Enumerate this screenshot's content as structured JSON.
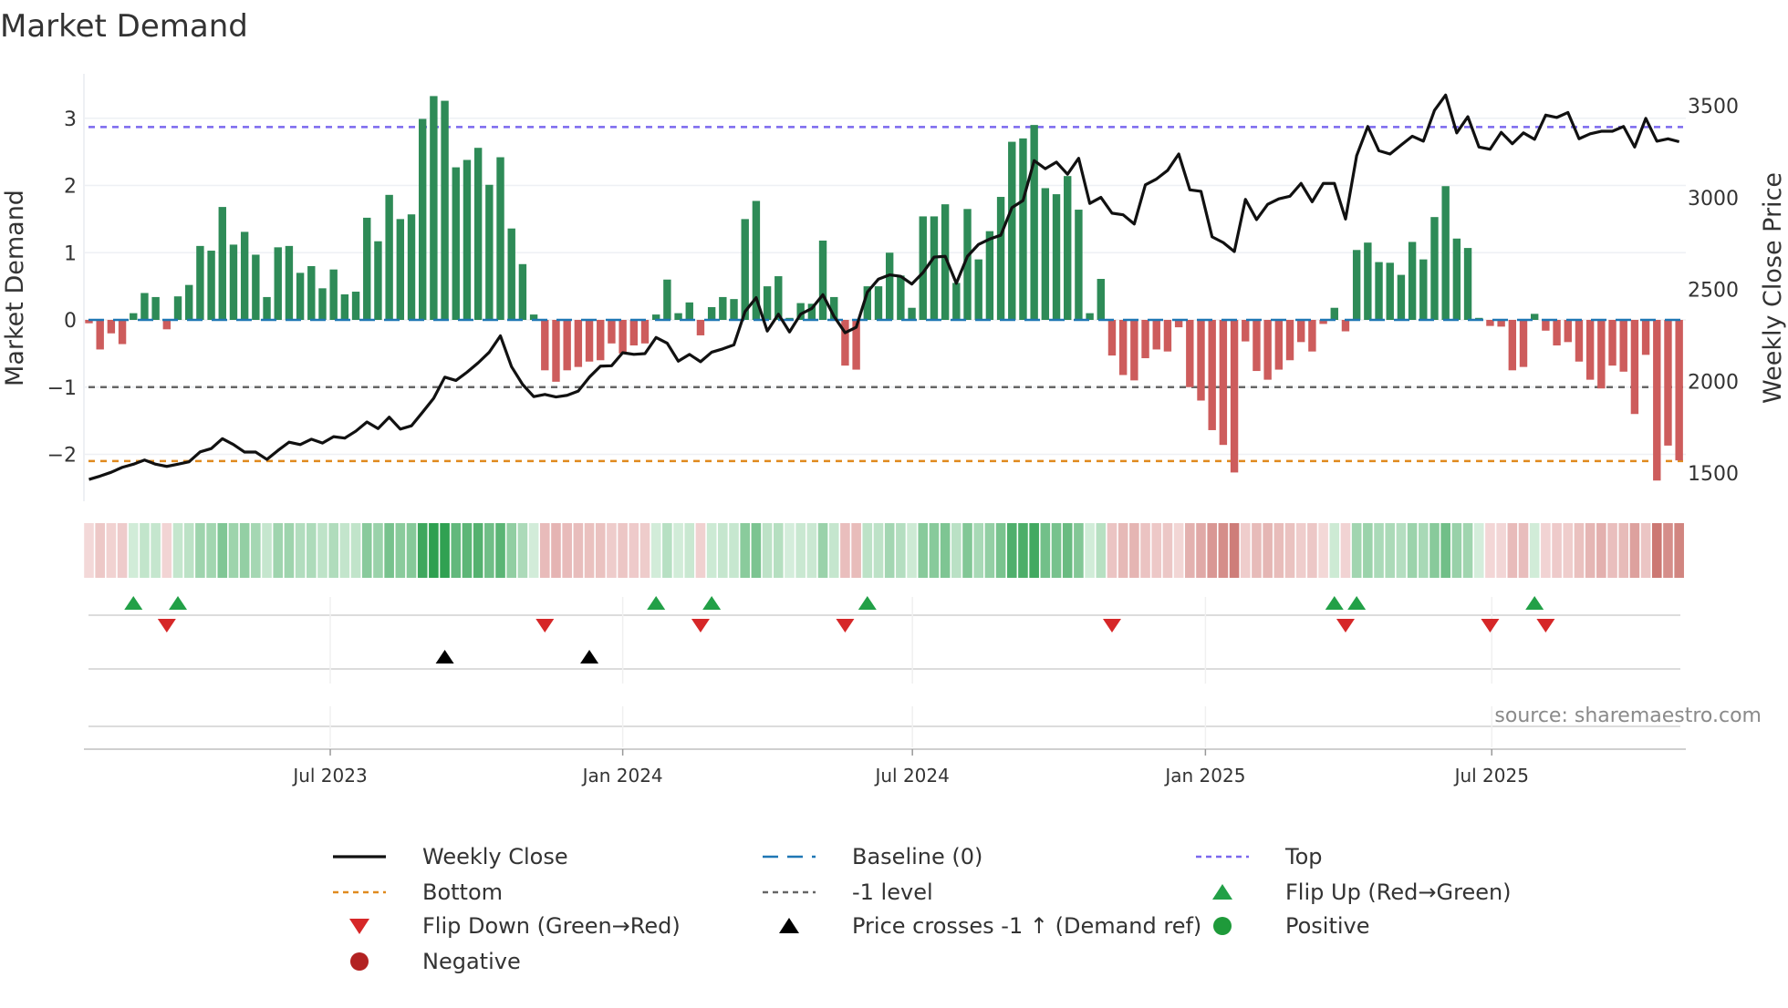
{
  "title": "Market Demand",
  "source": "source: sharemaestro.com",
  "colors": {
    "positive_bar": "#2e8b57",
    "negative_bar": "#cd5c5c",
    "price_line": "#111111",
    "baseline": "#1f77b4",
    "top": "#7b68ee",
    "bottom": "#e08a1e",
    "minus1": "#666666",
    "flip_up": "#22a047",
    "flip_down": "#d62728",
    "cross": "#000000",
    "positive_dot": "#1e9a3a",
    "negative_dot": "#b22222",
    "grid": "#eef0f4"
  },
  "chart_data": {
    "type": "bar",
    "title": "Market Demand",
    "ylabel": "Market Demand",
    "y2label": "Weekly Close Price",
    "ylim": [
      -2.7,
      3.66
    ],
    "y2lim": [
      1346,
      3674
    ],
    "yticks": [
      -2,
      -1,
      0,
      1,
      2,
      3
    ],
    "ytick_labels": [
      "−2",
      "−1",
      "0",
      "1",
      "2",
      "3"
    ],
    "y2ticks": [
      1500,
      2000,
      2500,
      3000,
      3500
    ],
    "y2tick_labels": [
      "1500",
      "2000",
      "2500",
      "3000",
      "3500"
    ],
    "x_ticks": [
      {
        "label": "Jul 2023",
        "week": 21.7
      },
      {
        "label": "Jan 2024",
        "week": 48.0
      },
      {
        "label": "Jul 2024",
        "week": 74.05
      },
      {
        "label": "Jan 2025",
        "week": 100.4
      },
      {
        "label": "Jul 2025",
        "week": 126.15
      }
    ],
    "levels": {
      "top": 2.87,
      "baseline": 0,
      "minus1": -1,
      "bottom": -2.1
    },
    "grid": true,
    "legend_placement": "bottom",
    "series": [
      {
        "name": "Market Demand",
        "type": "bar",
        "values": [
          -0.05,
          -0.44,
          -0.2,
          -0.36,
          0.1,
          0.4,
          0.34,
          -0.14,
          0.35,
          0.52,
          1.1,
          1.03,
          1.68,
          1.12,
          1.31,
          0.97,
          0.34,
          1.08,
          1.1,
          0.7,
          0.8,
          0.47,
          0.75,
          0.38,
          0.42,
          1.52,
          1.17,
          1.86,
          1.5,
          1.57,
          2.99,
          3.33,
          3.26,
          2.27,
          2.38,
          2.56,
          2.01,
          2.42,
          1.36,
          0.83,
          0.08,
          -0.75,
          -0.92,
          -0.75,
          -0.7,
          -0.62,
          -0.6,
          -0.35,
          -0.5,
          -0.38,
          -0.35,
          0.08,
          0.6,
          0.1,
          0.26,
          -0.23,
          0.19,
          0.34,
          0.31,
          1.5,
          1.77,
          0.5,
          0.65,
          0.03,
          0.25,
          0.24,
          1.18,
          0.34,
          -0.68,
          -0.74,
          0.5,
          0.5,
          1.0,
          0.66,
          0.18,
          1.54,
          1.54,
          1.72,
          0.55,
          1.65,
          0.9,
          1.32,
          1.83,
          2.65,
          2.7,
          2.9,
          1.96,
          1.87,
          2.14,
          1.64,
          0.1,
          0.61,
          -0.53,
          -0.82,
          -0.9,
          -0.57,
          -0.44,
          -0.47,
          -0.11,
          -1.0,
          -1.2,
          -1.64,
          -1.86,
          -2.27,
          -0.32,
          -0.76,
          -0.89,
          -0.74,
          -0.6,
          -0.33,
          -0.47,
          -0.06,
          0.18,
          -0.17,
          1.04,
          1.15,
          0.86,
          0.85,
          0.67,
          1.16,
          0.9,
          1.53,
          1.99,
          1.21,
          1.07,
          0.03,
          -0.09,
          -0.1,
          -0.75,
          -0.7,
          0.09,
          -0.16,
          -0.38,
          -0.33,
          -0.62,
          -0.89,
          -1.02,
          -0.68,
          -0.77,
          -1.4,
          -0.52,
          -2.39,
          -1.87,
          -2.09
        ]
      },
      {
        "name": "Weekly Close",
        "type": "line",
        "axis": "right",
        "values": [
          1465,
          1483,
          1504,
          1531,
          1548,
          1571,
          1548,
          1536,
          1548,
          1561,
          1615,
          1633,
          1687,
          1655,
          1614,
          1614,
          1574,
          1623,
          1668,
          1655,
          1684,
          1663,
          1698,
          1690,
          1728,
          1778,
          1742,
          1804,
          1739,
          1757,
          1831,
          1907,
          2022,
          2004,
          2049,
          2100,
          2158,
          2247,
          2079,
          1982,
          1916,
          1928,
          1914,
          1923,
          1946,
          2022,
          2082,
          2084,
          2155,
          2146,
          2150,
          2238,
          2207,
          2109,
          2146,
          2106,
          2158,
          2176,
          2198,
          2379,
          2455,
          2273,
          2365,
          2268,
          2365,
          2396,
          2471,
          2353,
          2264,
          2294,
          2485,
          2556,
          2579,
          2571,
          2529,
          2591,
          2676,
          2680,
          2533,
          2680,
          2745,
          2774,
          2795,
          2945,
          2984,
          3201,
          3157,
          3193,
          3127,
          3214,
          2968,
          3001,
          2915,
          2906,
          2856,
          3069,
          3101,
          3148,
          3237,
          3042,
          3034,
          2786,
          2755,
          2706,
          2990,
          2880,
          2963,
          2993,
          3007,
          3077,
          2977,
          3077,
          3077,
          2883,
          3228,
          3387,
          3255,
          3237,
          3286,
          3334,
          3307,
          3475,
          3558,
          3352,
          3440,
          3275,
          3263,
          3355,
          3293,
          3352,
          3317,
          3449,
          3436,
          3463,
          3320,
          3347,
          3361,
          3361,
          3387,
          3275,
          3431,
          3307,
          3320,
          3304
        ]
      }
    ],
    "price_cross_weeks": [
      32,
      45
    ]
  },
  "legend": [
    {
      "label": "Weekly Close",
      "kind": "line-solid",
      "color": "#111111"
    },
    {
      "label": "Baseline (0)",
      "kind": "line-dashed",
      "color": "#1f77b4"
    },
    {
      "label": "Top",
      "kind": "line-dotted",
      "color": "#7b68ee"
    },
    {
      "label": "Bottom",
      "kind": "line-dotted",
      "color": "#e08a1e"
    },
    {
      "label": "-1 level",
      "kind": "line-dotted",
      "color": "#666666"
    },
    {
      "label": "Flip Up (Red→Green)",
      "kind": "tri-up",
      "color": "#22a047"
    },
    {
      "label": "Flip Down (Green→Red)",
      "kind": "tri-down",
      "color": "#d62728"
    },
    {
      "label": "Price crosses -1 ↑ (Demand ref)",
      "kind": "tri-up",
      "color": "#000000"
    },
    {
      "label": "Positive",
      "kind": "dot",
      "color": "#1e9a3a"
    },
    {
      "label": "Negative",
      "kind": "dot",
      "color": "#b22222"
    }
  ]
}
